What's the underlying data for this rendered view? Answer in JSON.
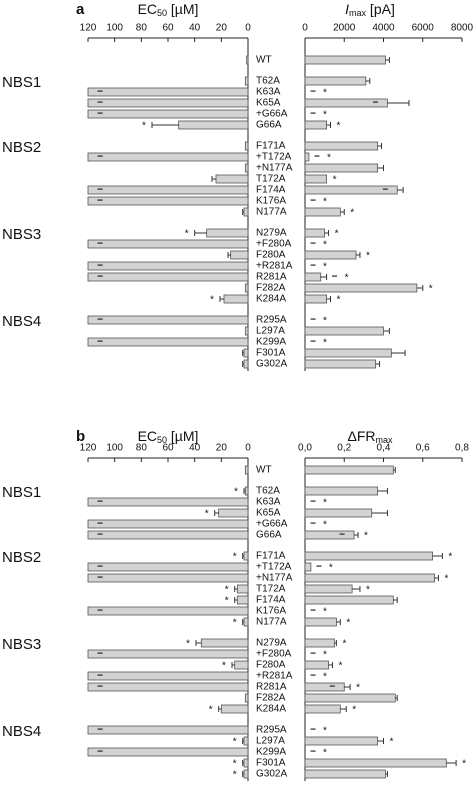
{
  "chart_data": [
    {
      "type": "bar",
      "panel_label": "a",
      "categories": [
        "WT",
        "T62A",
        "K63A",
        "K65A",
        "+G66A",
        "G66A",
        "F171A",
        "+T172A",
        "+N177A",
        "T172A",
        "F174A",
        "K176A",
        "N177A",
        "N279A",
        "+F280A",
        "F280A",
        "+R281A",
        "R281A",
        "F282A",
        "K284A",
        "R295A",
        "L297A",
        "K299A",
        "F301A",
        "G302A"
      ],
      "group_labels": [
        null,
        "NBS1",
        null,
        null,
        null,
        null,
        "NBS2",
        null,
        null,
        null,
        null,
        null,
        null,
        "NBS3",
        null,
        null,
        null,
        null,
        null,
        null,
        "NBS4",
        null,
        null,
        null,
        null
      ],
      "left": {
        "axis_title": {
          "main": "EC",
          "sub": "50",
          "unit": " [µM]"
        },
        "color": "#d3d3d3",
        "xlim": [
          120,
          0
        ],
        "xticks": [
          120,
          100,
          80,
          60,
          40,
          20,
          0
        ],
        "values": [
          1,
          2,
          120,
          120,
          120,
          52,
          2,
          120,
          2,
          24,
          120,
          120,
          3,
          31,
          120,
          13,
          120,
          120,
          2,
          18,
          120,
          2,
          120,
          3,
          3
        ],
        "errors": [
          null,
          null,
          null,
          null,
          null,
          20,
          null,
          null,
          null,
          3,
          null,
          null,
          1,
          9,
          null,
          2,
          null,
          null,
          null,
          3,
          null,
          null,
          null,
          1,
          1
        ],
        "dash": [
          null,
          null,
          "−",
          "−",
          "−",
          null,
          null,
          "−",
          null,
          null,
          "−",
          "−",
          null,
          null,
          "−",
          null,
          "−",
          "−",
          null,
          null,
          "−",
          null,
          "−",
          null,
          null
        ],
        "significance": [
          null,
          null,
          null,
          null,
          null,
          "*",
          null,
          null,
          null,
          null,
          null,
          null,
          null,
          "*",
          null,
          null,
          null,
          null,
          null,
          "*",
          null,
          null,
          null,
          null,
          null
        ]
      },
      "right": {
        "axis_title": {
          "main": "I",
          "sub": "max",
          "unit": " [pA]"
        },
        "color": "#d3d3d3",
        "xlim": [
          0,
          8000
        ],
        "xticks": [
          0,
          2000,
          4000,
          6000,
          8000
        ],
        "values": [
          4100,
          3100,
          0,
          4200,
          0,
          1100,
          3700,
          200,
          3700,
          1100,
          4700,
          0,
          1800,
          1000,
          0,
          2600,
          0,
          800,
          5700,
          1100,
          0,
          4000,
          0,
          4400,
          3600
        ],
        "errors": [
          200,
          200,
          null,
          1100,
          null,
          200,
          200,
          null,
          300,
          null,
          300,
          null,
          200,
          200,
          null,
          200,
          null,
          300,
          300,
          200,
          null,
          300,
          null,
          700,
          200
        ],
        "dash": [
          null,
          null,
          "−",
          "−",
          "−",
          null,
          null,
          "−",
          null,
          null,
          "−",
          "−",
          null,
          null,
          "−",
          null,
          "−",
          "−",
          null,
          null,
          "−",
          null,
          "−",
          null,
          null
        ],
        "significance": [
          null,
          null,
          "*",
          null,
          "*",
          "*",
          null,
          "*",
          null,
          "*",
          null,
          "*",
          "*",
          "*",
          "*",
          "*",
          "*",
          "*",
          "*",
          "*",
          "*",
          null,
          "*",
          null,
          null
        ]
      }
    },
    {
      "type": "bar",
      "panel_label": "b",
      "categories": [
        "WT",
        "T62A",
        "K63A",
        "K65A",
        "+G66A",
        "G66A",
        "F171A",
        "+T172A",
        "+N177A",
        "T172A",
        "F174A",
        "K176A",
        "N177A",
        "N279A",
        "+F280A",
        "F280A",
        "+R281A",
        "R281A",
        "F282A",
        "K284A",
        "R295A",
        "L297A",
        "K299A",
        "F301A",
        "G302A"
      ],
      "group_labels": [
        null,
        "NBS1",
        null,
        null,
        null,
        null,
        "NBS2",
        null,
        null,
        null,
        null,
        null,
        null,
        "NBS3",
        null,
        null,
        null,
        null,
        null,
        null,
        "NBS4",
        null,
        null,
        null,
        null
      ],
      "left": {
        "axis_title": {
          "main": "EC",
          "sub": "50",
          "unit": " [µM]"
        },
        "color": "#d3d3d3",
        "xlim": [
          120,
          0
        ],
        "xticks": [
          120,
          100,
          80,
          60,
          40,
          20,
          0
        ],
        "values": [
          2,
          2,
          120,
          22,
          120,
          120,
          3,
          120,
          120,
          8,
          8,
          120,
          3,
          35,
          120,
          10,
          120,
          120,
          2,
          20,
          120,
          3,
          120,
          3,
          3
        ],
        "errors": [
          null,
          1,
          null,
          3,
          null,
          null,
          1,
          null,
          null,
          2,
          2,
          null,
          1,
          4,
          null,
          2,
          null,
          null,
          null,
          2,
          null,
          1,
          null,
          1,
          1
        ],
        "dash": [
          null,
          null,
          "−",
          null,
          "−",
          "−",
          null,
          "−",
          "−",
          null,
          null,
          "−",
          null,
          null,
          "−",
          null,
          "−",
          "−",
          null,
          null,
          "−",
          null,
          "−",
          null,
          null
        ],
        "significance": [
          null,
          "*",
          null,
          "*",
          null,
          null,
          "*",
          null,
          null,
          "*",
          "*",
          null,
          "*",
          "*",
          null,
          "*",
          null,
          null,
          null,
          "*",
          null,
          "*",
          null,
          "*",
          "*"
        ]
      },
      "right": {
        "axis_title": {
          "main": "ΔFR",
          "sub": "max",
          "unit": ""
        },
        "color": "#d3d3d3",
        "xlim": [
          0,
          0.8
        ],
        "xticks": [
          {
            "value": 0,
            "label": "0,0"
          },
          {
            "value": 0.2,
            "label": "0,2"
          },
          {
            "value": 0.4,
            "label": "0,4"
          },
          {
            "value": 0.6,
            "label": "0,6"
          },
          {
            "value": 0.8,
            "label": "0,8"
          }
        ],
        "values": [
          0.45,
          0.37,
          0,
          0.34,
          0,
          0.25,
          0.65,
          0.03,
          0.66,
          0.24,
          0.45,
          0,
          0.16,
          0.15,
          0,
          0.12,
          0,
          0.2,
          0.46,
          0.18,
          0,
          0.37,
          0,
          0.72,
          0.41
        ],
        "errors": [
          0.01,
          0.05,
          null,
          0.08,
          null,
          0.02,
          0.05,
          null,
          0.02,
          0.04,
          0.02,
          null,
          0.02,
          0.01,
          null,
          0.02,
          null,
          0.03,
          0.01,
          0.03,
          null,
          0.03,
          null,
          0.05,
          0.01
        ],
        "dash": [
          null,
          null,
          "−",
          null,
          "−",
          "−",
          null,
          "−",
          null,
          null,
          null,
          "−",
          null,
          null,
          "−",
          null,
          "−",
          "−",
          null,
          null,
          "−",
          null,
          "−",
          null,
          null
        ],
        "significance": [
          null,
          null,
          "*",
          null,
          "*",
          "*",
          "*",
          "*",
          "*",
          "*",
          null,
          "*",
          "*",
          "*",
          "*",
          "*",
          "*",
          "*",
          null,
          "*",
          "*",
          "*",
          "*",
          "*",
          null
        ]
      }
    }
  ]
}
